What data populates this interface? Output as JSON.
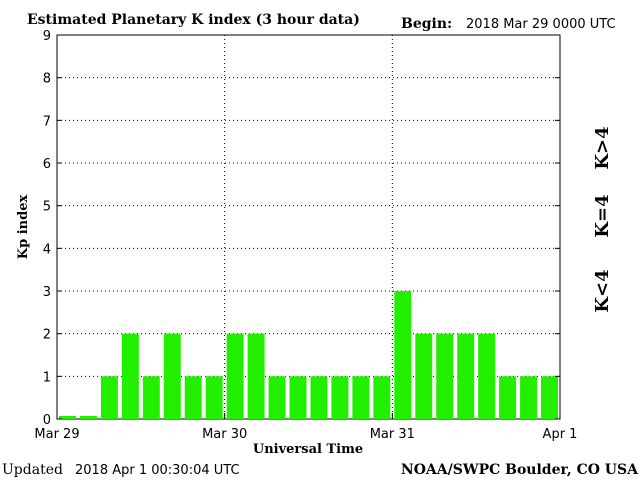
{
  "header": {
    "title": "Estimated Planetary K index (3 hour data)",
    "begin_label": "Begin:",
    "begin_value": "2018 Mar 29 0000 UTC"
  },
  "footer": {
    "updated_label": "Updated",
    "updated_value": "2018 Apr  1 00:30:04 UTC",
    "credit": "NOAA/SWPC Boulder, CO USA"
  },
  "legend": {
    "high": "K>4",
    "equal": "K=4",
    "low": "K<4"
  },
  "colors": {
    "low": "#22ee00",
    "equal": "#ffcc00",
    "high": "#ff2200"
  },
  "chart_data": {
    "type": "bar",
    "title": "Estimated Planetary K index (3 hour data)",
    "xlabel": "Universal Time",
    "ylabel": "Kp index",
    "ylim": [
      0,
      9
    ],
    "yticks": [
      "0",
      "1",
      "2",
      "3",
      "4",
      "5",
      "6",
      "7",
      "8",
      "9"
    ],
    "xticks": [
      "Mar 29",
      "Mar 30",
      "Mar 31",
      "Apr 1"
    ],
    "grid": true,
    "values": [
      0,
      0,
      1,
      2,
      1,
      2,
      1,
      1,
      2,
      2,
      1,
      1,
      1,
      1,
      1,
      1,
      3,
      2,
      2,
      2,
      2,
      1,
      1,
      1
    ]
  }
}
